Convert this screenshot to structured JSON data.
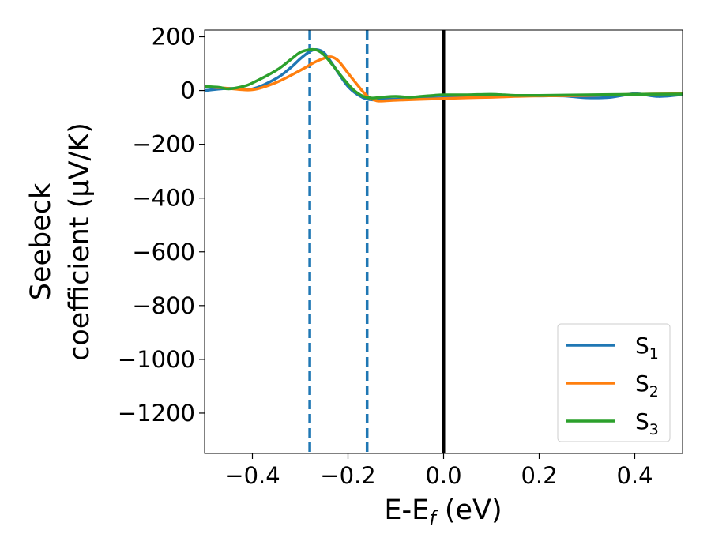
{
  "chart_data": {
    "type": "line",
    "title": "",
    "xlabel": {
      "base": "E-E",
      "sub": "f",
      "suffix": " (eV)"
    },
    "ylabel": {
      "line1": "Seebeck",
      "line2": "coefficient  (μV/K)"
    },
    "xlim": [
      -0.5,
      0.5
    ],
    "ylim": [
      -1350,
      225
    ],
    "xticks": [
      {
        "value": -0.4,
        "label": "−0.4"
      },
      {
        "value": -0.2,
        "label": "−0.2"
      },
      {
        "value": 0.0,
        "label": "0.0"
      },
      {
        "value": 0.2,
        "label": "0.2"
      },
      {
        "value": 0.4,
        "label": "0.4"
      }
    ],
    "yticks": [
      {
        "value": 200,
        "label": "200"
      },
      {
        "value": 0,
        "label": "0"
      },
      {
        "value": -200,
        "label": "−200"
      },
      {
        "value": -400,
        "label": "−400"
      },
      {
        "value": -600,
        "label": "−600"
      },
      {
        "value": -800,
        "label": "−800"
      },
      {
        "value": -1000,
        "label": "−1000"
      },
      {
        "value": -1200,
        "label": "−1200"
      }
    ],
    "grid": false,
    "legend_position": "lower-right",
    "series": [
      {
        "name": "S",
        "sub": "1",
        "color": "#1f77b4",
        "x": [
          -0.5,
          -0.45,
          -0.4,
          -0.35,
          -0.32,
          -0.3,
          -0.28,
          -0.265,
          -0.25,
          -0.235,
          -0.22,
          -0.2,
          -0.18,
          -0.16,
          -0.14,
          -0.12,
          -0.1,
          -0.08,
          -0.05,
          0.0,
          0.05,
          0.1,
          0.15,
          0.2,
          0.25,
          0.3,
          0.35,
          0.4,
          0.45,
          0.5
        ],
        "y": [
          0,
          8,
          6,
          45,
          85,
          118,
          145,
          152,
          140,
          105,
          65,
          15,
          -15,
          -32,
          -35,
          -33,
          -32,
          -30,
          -27,
          -27,
          -20,
          -20,
          -18,
          -20,
          -20,
          -27,
          -25,
          -12,
          -22,
          -15
        ]
      },
      {
        "name": "S",
        "sub": "2",
        "color": "#ff7f0e",
        "x": [
          -0.5,
          -0.45,
          -0.4,
          -0.35,
          -0.3,
          -0.27,
          -0.25,
          -0.235,
          -0.22,
          -0.2,
          -0.18,
          -0.16,
          -0.14,
          -0.12,
          -0.1,
          -0.05,
          0.0,
          0.05,
          0.1,
          0.15,
          0.2,
          0.3,
          0.4,
          0.5
        ],
        "y": [
          15,
          8,
          3,
          30,
          75,
          105,
          120,
          125,
          110,
          65,
          20,
          -20,
          -38,
          -38,
          -36,
          -33,
          -30,
          -27,
          -25,
          -22,
          -20,
          -18,
          -14,
          -12
        ]
      },
      {
        "name": "S",
        "sub": "3",
        "color": "#2ca02c",
        "x": [
          -0.5,
          -0.47,
          -0.45,
          -0.42,
          -0.4,
          -0.35,
          -0.32,
          -0.3,
          -0.28,
          -0.265,
          -0.25,
          -0.23,
          -0.21,
          -0.19,
          -0.17,
          -0.15,
          -0.13,
          -0.1,
          -0.07,
          -0.05,
          -0.02,
          0.0,
          0.05,
          0.1,
          0.15,
          0.2,
          0.3,
          0.4,
          0.5
        ],
        "y": [
          15,
          12,
          6,
          15,
          28,
          75,
          115,
          142,
          152,
          150,
          132,
          90,
          45,
          5,
          -20,
          -28,
          -25,
          -22,
          -25,
          -22,
          -18,
          -16,
          -16,
          -14,
          -18,
          -18,
          -16,
          -14,
          -13
        ]
      }
    ],
    "reference_lines": [
      {
        "orientation": "vertical",
        "x": -0.28,
        "style": "dashed",
        "color": "#1f77b4"
      },
      {
        "orientation": "vertical",
        "x": -0.16,
        "style": "dashed",
        "color": "#1f77b4"
      },
      {
        "orientation": "vertical",
        "x": 0.0,
        "style": "solid",
        "color": "#000000"
      }
    ]
  }
}
